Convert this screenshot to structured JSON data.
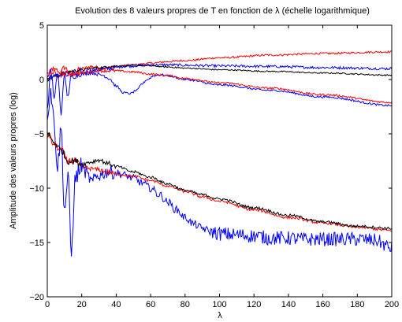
{
  "chart_data": {
    "type": "line",
    "title": "Evolution des 8 valeurs propres de T en fonction de λ (échelle logarithmique)",
    "xlabel": "λ",
    "ylabel": "Amplitude des valeurs propres (log)",
    "xlim": [
      0,
      200
    ],
    "ylim": [
      -20,
      5
    ],
    "xticks": [
      0,
      20,
      40,
      60,
      80,
      100,
      120,
      140,
      160,
      180,
      200
    ],
    "yticks": [
      -20,
      -15,
      -10,
      -5,
      0,
      5
    ],
    "xtick_labels": [
      "0",
      "20",
      "40",
      "60",
      "80",
      "100",
      "120",
      "140",
      "160",
      "180",
      "200"
    ],
    "ytick_labels": [
      "−20",
      "−15",
      "−10",
      "−5",
      "0",
      "5"
    ],
    "grid": false,
    "colors": {
      "red": "#ff0000",
      "blue": "#0000ff",
      "black": "#000000"
    },
    "series": [
      {
        "color": "red",
        "noise": 0.15,
        "points": [
          [
            0,
            0.3
          ],
          [
            3,
            1.0
          ],
          [
            6,
            0.2
          ],
          [
            10,
            1.1
          ],
          [
            14,
            0.5
          ],
          [
            20,
            1.0
          ],
          [
            26,
            1.2
          ],
          [
            32,
            1.0
          ],
          [
            40,
            1.2
          ],
          [
            50,
            1.35
          ],
          [
            60,
            1.5
          ],
          [
            70,
            1.65
          ],
          [
            80,
            1.75
          ],
          [
            100,
            2.0
          ],
          [
            130,
            2.25
          ],
          [
            160,
            2.4
          ],
          [
            200,
            2.55
          ]
        ]
      },
      {
        "color": "blue",
        "noise": 0.2,
        "points": [
          [
            0,
            -2.5
          ],
          [
            2,
            0.8
          ],
          [
            4,
            -1.5
          ],
          [
            6,
            0.5
          ],
          [
            8,
            -3.0
          ],
          [
            10,
            0.3
          ],
          [
            12,
            -1.5
          ],
          [
            14,
            0.4
          ],
          [
            18,
            0.6
          ],
          [
            25,
            0.8
          ],
          [
            35,
            1.0
          ],
          [
            45,
            1.2
          ],
          [
            55,
            1.3
          ],
          [
            60,
            1.35
          ],
          [
            70,
            1.35
          ],
          [
            85,
            1.3
          ],
          [
            100,
            1.25
          ],
          [
            130,
            1.2
          ],
          [
            160,
            1.1
          ],
          [
            200,
            1.0
          ]
        ]
      },
      {
        "color": "black",
        "noise": 0.1,
        "points": [
          [
            0,
            0.0
          ],
          [
            5,
            0.3
          ],
          [
            10,
            0.6
          ],
          [
            15,
            0.8
          ],
          [
            20,
            0.9
          ],
          [
            30,
            1.1
          ],
          [
            40,
            1.25
          ],
          [
            50,
            1.3
          ],
          [
            60,
            1.25
          ],
          [
            70,
            1.15
          ],
          [
            80,
            1.05
          ],
          [
            100,
            0.9
          ],
          [
            130,
            0.75
          ],
          [
            160,
            0.6
          ],
          [
            200,
            0.4
          ]
        ]
      },
      {
        "color": "blue",
        "noise": 0.15,
        "points": [
          [
            0,
            0.0
          ],
          [
            5,
            0.4
          ],
          [
            10,
            0.5
          ],
          [
            15,
            0.3
          ],
          [
            20,
            0.5
          ],
          [
            26,
            0.6
          ],
          [
            32,
            0.4
          ],
          [
            36,
            0.1
          ],
          [
            40,
            -0.6
          ],
          [
            44,
            -1.2
          ],
          [
            48,
            -1.3
          ],
          [
            52,
            -1.0
          ],
          [
            55,
            -0.4
          ],
          [
            58,
            0.0
          ],
          [
            62,
            0.35
          ],
          [
            66,
            0.45
          ],
          [
            70,
            0.35
          ],
          [
            80,
            0.0
          ],
          [
            100,
            -0.5
          ],
          [
            130,
            -1.0
          ],
          [
            160,
            -1.6
          ],
          [
            200,
            -2.4
          ]
        ]
      },
      {
        "color": "red",
        "noise": 0.15,
        "points": [
          [
            0,
            0.5
          ],
          [
            5,
            0.8
          ],
          [
            10,
            0.5
          ],
          [
            20,
            0.6
          ],
          [
            30,
            0.8
          ],
          [
            40,
            0.8
          ],
          [
            50,
            0.7
          ],
          [
            60,
            0.5
          ],
          [
            70,
            0.35
          ],
          [
            80,
            0.1
          ],
          [
            100,
            -0.3
          ],
          [
            130,
            -0.8
          ],
          [
            160,
            -1.4
          ],
          [
            200,
            -2.1
          ]
        ]
      },
      {
        "color": "blue",
        "noise": 0.6,
        "points": [
          [
            0,
            -3.0
          ],
          [
            2,
            -1.0
          ],
          [
            4,
            -4.0
          ],
          [
            6,
            -8.0
          ],
          [
            8,
            -4.5
          ],
          [
            10,
            -12.0
          ],
          [
            12,
            -9.0
          ],
          [
            14,
            -16.0
          ],
          [
            16,
            -9.5
          ],
          [
            18,
            -8.5
          ],
          [
            20,
            -8.0
          ],
          [
            22,
            -8.5
          ],
          [
            24,
            -9.0
          ],
          [
            26,
            -9.5
          ],
          [
            28,
            -9.0
          ],
          [
            30,
            -8.8
          ],
          [
            35,
            -8.5
          ],
          [
            40,
            -8.6
          ],
          [
            45,
            -8.8
          ],
          [
            50,
            -9.1
          ],
          [
            55,
            -9.5
          ],
          [
            60,
            -10.0
          ],
          [
            65,
            -10.6
          ],
          [
            70,
            -11.3
          ],
          [
            75,
            -12.0
          ],
          [
            80,
            -12.7
          ],
          [
            85,
            -13.3
          ],
          [
            90,
            -13.7
          ],
          [
            95,
            -14.0
          ],
          [
            100,
            -14.2
          ],
          [
            110,
            -14.3
          ],
          [
            120,
            -14.4
          ],
          [
            130,
            -14.6
          ],
          [
            140,
            -14.6
          ],
          [
            150,
            -14.7
          ],
          [
            160,
            -14.7
          ],
          [
            170,
            -14.7
          ],
          [
            180,
            -14.7
          ],
          [
            190,
            -14.8
          ],
          [
            200,
            -15.5
          ]
        ]
      },
      {
        "color": "red",
        "noise": 0.2,
        "points": [
          [
            0,
            -5.0
          ],
          [
            4,
            -6.0
          ],
          [
            8,
            -6.5
          ],
          [
            12,
            -7.5
          ],
          [
            16,
            -7.5
          ],
          [
            20,
            -8.0
          ],
          [
            25,
            -8.2
          ],
          [
            30,
            -8.3
          ],
          [
            35,
            -8.5
          ],
          [
            40,
            -8.7
          ],
          [
            50,
            -8.9
          ],
          [
            60,
            -9.3
          ],
          [
            70,
            -9.8
          ],
          [
            80,
            -10.3
          ],
          [
            90,
            -10.8
          ],
          [
            100,
            -11.2
          ],
          [
            120,
            -12.0
          ],
          [
            140,
            -12.7
          ],
          [
            160,
            -13.2
          ],
          [
            180,
            -13.6
          ],
          [
            200,
            -13.9
          ]
        ]
      },
      {
        "color": "black",
        "noise": 0.2,
        "points": [
          [
            0,
            -5.0
          ],
          [
            4,
            -5.8
          ],
          [
            8,
            -6.5
          ],
          [
            12,
            -7.5
          ],
          [
            16,
            -7.5
          ],
          [
            20,
            -7.8
          ],
          [
            25,
            -7.6
          ],
          [
            30,
            -7.4
          ],
          [
            35,
            -7.7
          ],
          [
            40,
            -8.0
          ],
          [
            50,
            -8.5
          ],
          [
            60,
            -9.0
          ],
          [
            70,
            -9.6
          ],
          [
            80,
            -10.2
          ],
          [
            90,
            -10.6
          ],
          [
            100,
            -11.0
          ],
          [
            120,
            -11.8
          ],
          [
            140,
            -12.5
          ],
          [
            160,
            -13.1
          ],
          [
            180,
            -13.5
          ],
          [
            200,
            -13.7
          ]
        ]
      }
    ]
  }
}
